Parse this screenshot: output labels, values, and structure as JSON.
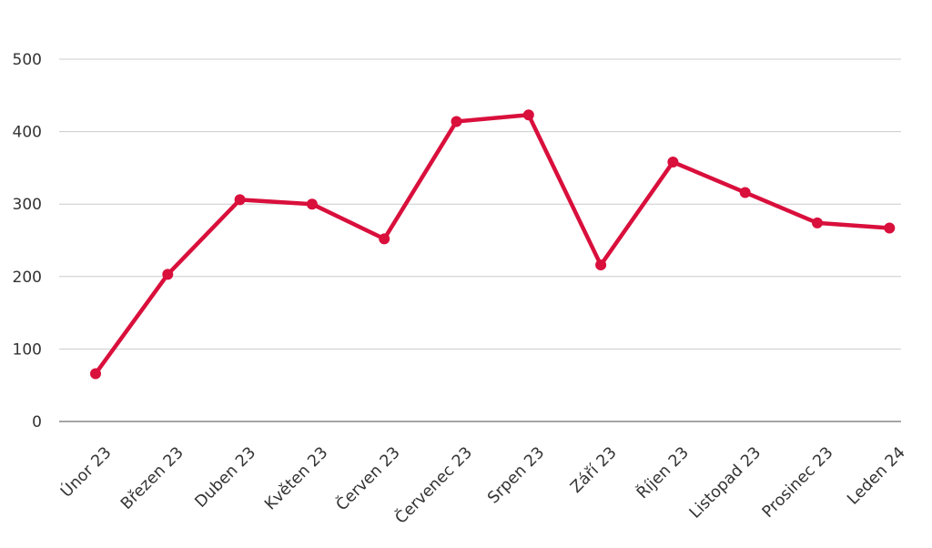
{
  "chart_data": {
    "type": "line",
    "title": "",
    "xlabel": "",
    "ylabel": "",
    "ylim": [
      0,
      500
    ],
    "yticks": [
      0,
      100,
      200,
      300,
      400,
      500
    ],
    "grid": true,
    "legend": "none",
    "categories": [
      "Únor 23",
      "Březen 23",
      "Duben 23",
      "Květen 23",
      "Červen 23",
      "Červenec 23",
      "Srpen 23",
      "Září 23",
      "Říjen 23",
      "Listopad 23",
      "Prosinec 23",
      "Leden 24"
    ],
    "series": [
      {
        "color": "#d90f3c",
        "values": [
          66,
          203,
          306,
          300,
          252,
          414,
          423,
          216,
          358,
          316,
          274,
          267
        ]
      }
    ]
  }
}
